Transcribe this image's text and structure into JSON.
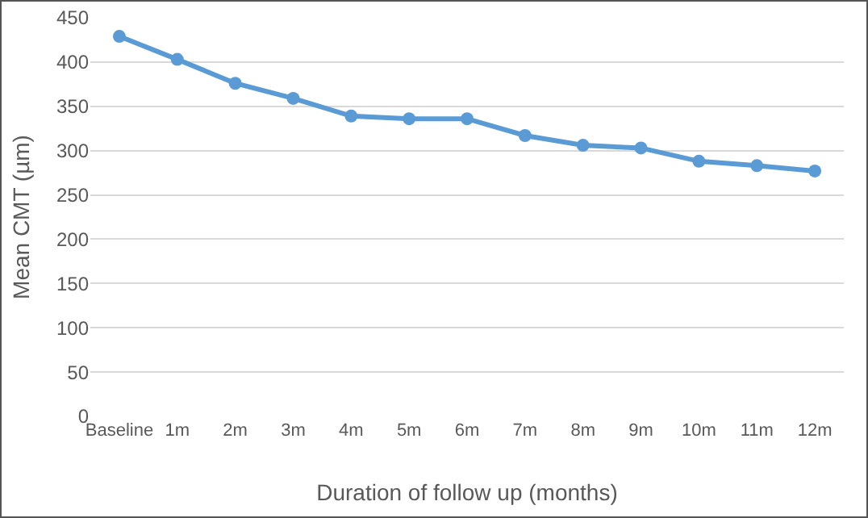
{
  "chart_data": {
    "type": "line",
    "xlabel": "Duration of follow up (months)",
    "ylabel": "Mean CMT (µm)",
    "categories": [
      "Baseline",
      "1m",
      "2m",
      "3m",
      "4m",
      "5m",
      "6m",
      "7m",
      "8m",
      "9m",
      "10m",
      "11m",
      "12m"
    ],
    "series": [
      {
        "color": "#5b9bd5",
        "values": [
          429,
          403,
          376,
          359,
          339,
          336,
          336,
          317,
          306,
          303,
          288,
          283,
          277
        ]
      }
    ],
    "ylim": [
      0,
      450
    ],
    "yticks": [
      0,
      50,
      100,
      150,
      200,
      250,
      300,
      350,
      400,
      450
    ],
    "grid": "y",
    "marker": "circle",
    "line_style": "solid"
  }
}
